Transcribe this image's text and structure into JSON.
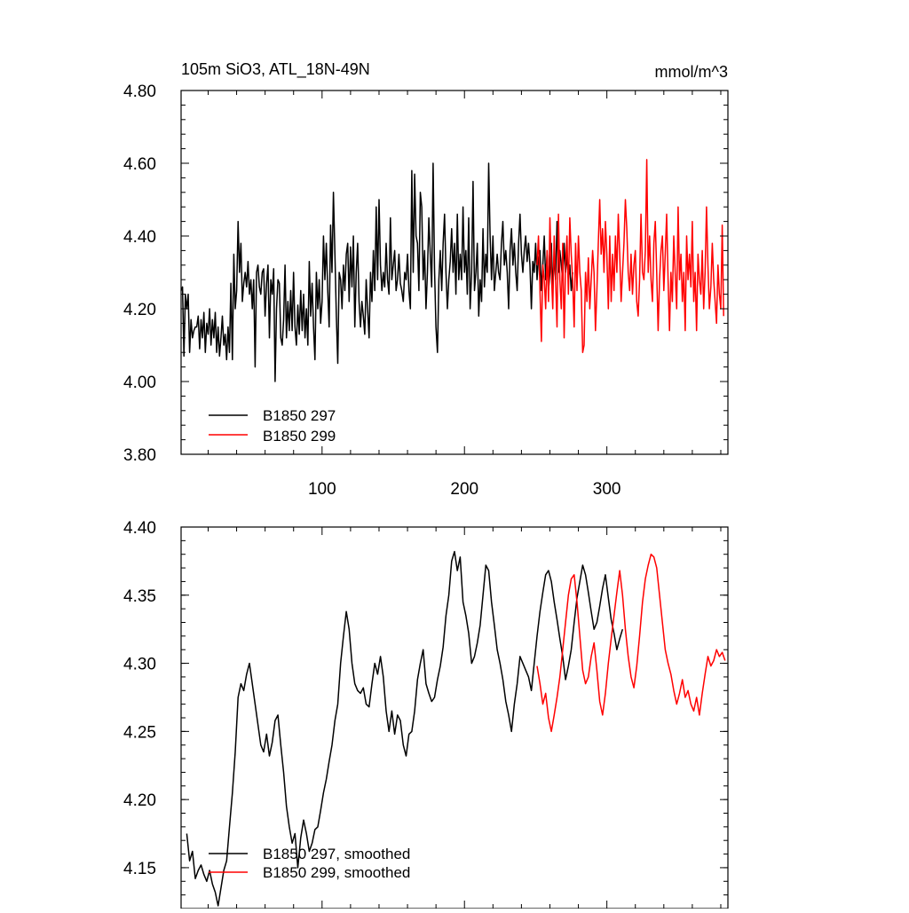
{
  "chart_data": [
    {
      "type": "line",
      "title": "105m SiO3, ATL_18N-49N",
      "units": "mmol/m^3",
      "xlim": [
        1,
        385
      ],
      "ylim": [
        3.8,
        4.8
      ],
      "x_ticks": [
        100,
        200,
        300
      ],
      "y_ticks": [
        3.8,
        4.0,
        4.2,
        4.4,
        4.6,
        4.8
      ],
      "y_tick_labels": [
        "3.80",
        "4.00",
        "4.20",
        "4.40",
        "4.60",
        "4.80"
      ],
      "legend_position": "bottom-left",
      "series": [
        {
          "name": "B1850 297",
          "color": "#000000",
          "x_start": 1,
          "x_step": 1,
          "values": [
            4.25,
            4.26,
            4.07,
            4.24,
            4.2,
            4.24,
            4.08,
            4.17,
            4.12,
            4.14,
            4.15,
            4.15,
            4.18,
            4.09,
            4.17,
            4.12,
            4.19,
            4.08,
            4.16,
            4.13,
            4.2,
            4.1,
            4.17,
            4.12,
            4.19,
            4.08,
            4.15,
            4.07,
            4.12,
            4.18,
            4.1,
            4.13,
            4.06,
            4.15,
            4.08,
            4.27,
            4.06,
            4.35,
            4.2,
            4.25,
            4.44,
            4.3,
            4.38,
            4.22,
            4.27,
            4.3,
            4.26,
            4.33,
            4.24,
            4.28,
            4.2,
            4.28,
            4.04,
            4.3,
            4.32,
            4.26,
            4.24,
            4.3,
            4.31,
            4.18,
            4.27,
            4.32,
            4.12,
            4.28,
            4.24,
            4.31,
            4.0,
            4.2,
            4.28,
            4.27,
            4.12,
            4.1,
            4.17,
            4.32,
            4.12,
            4.22,
            4.14,
            4.25,
            4.14,
            4.3,
            4.15,
            4.1,
            4.21,
            4.13,
            4.25,
            4.14,
            4.24,
            4.12,
            4.2,
            4.1,
            4.33,
            4.18,
            4.27,
            4.15,
            4.06,
            4.3,
            4.2,
            4.28,
            4.16,
            4.22,
            4.4,
            4.28,
            4.38,
            4.25,
            4.15,
            4.43,
            4.3,
            4.52,
            4.35,
            4.18,
            4.05,
            4.3,
            4.28,
            4.2,
            4.32,
            4.25,
            4.35,
            4.38,
            4.22,
            4.37,
            4.26,
            4.4,
            4.15,
            4.3,
            4.38,
            4.22,
            4.15,
            4.22,
            4.18,
            4.13,
            4.28,
            4.2,
            4.12,
            4.3,
            4.22,
            4.36,
            4.25,
            4.48,
            4.28,
            4.5,
            4.32,
            4.25,
            4.3,
            4.26,
            4.38,
            4.28,
            4.24,
            4.45,
            4.28,
            4.32,
            4.36,
            4.25,
            4.28,
            4.35,
            4.27,
            4.25,
            4.22,
            4.3,
            4.28,
            4.35,
            4.25,
            4.2,
            4.58,
            4.3,
            4.57,
            4.4,
            4.38,
            4.25,
            4.52,
            4.48,
            4.28,
            4.36,
            4.2,
            4.3,
            4.45,
            4.35,
            4.26,
            4.6,
            4.31,
            4.15,
            4.08,
            4.28,
            4.36,
            4.25,
            4.38,
            4.46,
            4.3,
            4.2,
            4.28,
            4.33,
            4.42,
            4.3,
            4.38,
            4.24,
            4.46,
            4.28,
            4.35,
            4.28,
            4.48,
            4.3,
            4.36,
            4.24,
            4.45,
            4.2,
            4.3,
            4.55,
            4.25,
            4.3,
            4.38,
            4.18,
            4.28,
            4.22,
            4.42,
            4.26,
            4.35,
            4.3,
            4.6,
            4.4,
            4.28,
            4.4,
            4.25,
            4.3,
            4.35,
            4.3,
            4.28,
            4.38,
            4.44,
            4.32,
            4.36,
            4.3,
            4.2,
            4.36,
            4.42,
            4.32,
            4.38,
            4.3,
            4.25,
            4.38,
            4.46,
            4.35,
            4.3,
            4.36,
            4.4,
            4.33,
            4.38,
            4.32,
            4.2,
            4.33,
            4.3,
            4.38,
            4.28,
            4.34,
            4.36,
            4.25,
            4.32,
            4.4,
            4.28,
            4.35,
            4.25,
            4.3,
            4.38,
            4.25,
            4.35,
            4.28,
            4.44,
            4.3,
            4.36,
            4.32,
            4.28,
            4.38,
            4.3,
            4.35,
            4.28,
            4.32,
            4.25,
            4.3
          ]
        },
        {
          "name": "B1850 299",
          "color": "#ff0000",
          "x_start": 251,
          "x_step": 1,
          "values": [
            4.32,
            4.4,
            4.25,
            4.11,
            4.32,
            4.28,
            4.2,
            4.36,
            4.22,
            4.45,
            4.3,
            4.2,
            4.4,
            4.28,
            4.15,
            4.46,
            4.28,
            4.2,
            4.38,
            4.12,
            4.32,
            4.4,
            4.24,
            4.45,
            4.35,
            4.28,
            4.15,
            4.38,
            4.25,
            4.4,
            4.3,
            4.25,
            4.08,
            4.1,
            4.3,
            4.22,
            4.34,
            4.2,
            4.28,
            4.36,
            4.3,
            4.14,
            4.25,
            4.38,
            4.5,
            4.35,
            4.42,
            4.3,
            4.44,
            4.35,
            4.2,
            4.4,
            4.22,
            4.35,
            4.25,
            4.4,
            4.3,
            4.46,
            4.35,
            4.22,
            4.3,
            4.38,
            4.5,
            4.42,
            4.3,
            4.25,
            4.35,
            4.24,
            4.32,
            4.36,
            4.22,
            4.18,
            4.28,
            4.46,
            4.3,
            4.28,
            4.36,
            4.61,
            4.3,
            4.4,
            4.28,
            4.22,
            4.38,
            4.44,
            4.3,
            4.14,
            4.28,
            4.36,
            4.4,
            4.25,
            4.35,
            4.46,
            4.28,
            4.14,
            4.3,
            4.22,
            4.4,
            4.3,
            4.2,
            4.48,
            4.28,
            4.35,
            4.22,
            4.3,
            4.14,
            4.4,
            4.28,
            4.35,
            4.26,
            4.44,
            4.22,
            4.3,
            4.14,
            4.35,
            4.28,
            4.24,
            4.36,
            4.2,
            4.3,
            4.48,
            4.32,
            4.2,
            4.26,
            4.38,
            4.28,
            4.22,
            4.16,
            4.32,
            4.24,
            4.2,
            4.43,
            4.18
          ]
        }
      ]
    },
    {
      "type": "line",
      "xlim": [
        1,
        385
      ],
      "ylim": [
        4.12,
        4.4
      ],
      "x_ticks": [
        100,
        200,
        300
      ],
      "y_ticks": [
        4.15,
        4.2,
        4.25,
        4.3,
        4.35,
        4.4
      ],
      "y_tick_labels": [
        "4.15",
        "4.20",
        "4.25",
        "4.30",
        "4.35",
        "4.40"
      ],
      "legend_position": "bottom-left",
      "series": [
        {
          "name": "B1850 297, smoothed",
          "color": "#000000",
          "x": [
            5,
            7,
            9,
            11,
            13,
            15,
            17,
            19,
            21,
            23,
            25,
            27,
            29,
            31,
            33,
            35,
            37,
            39,
            41,
            43,
            45,
            47,
            49,
            51,
            53,
            55,
            57,
            59,
            61,
            63,
            65,
            67,
            69,
            71,
            73,
            75,
            77,
            79,
            81,
            83,
            85,
            87,
            89,
            91,
            93,
            95,
            97,
            99,
            101,
            103,
            105,
            107,
            109,
            111,
            113,
            115,
            117,
            119,
            121,
            123,
            125,
            127,
            129,
            131,
            133,
            135,
            137,
            139,
            141,
            143,
            145,
            147,
            149,
            151,
            153,
            155,
            157,
            159,
            161,
            163,
            165,
            167,
            169,
            171,
            173,
            175,
            177,
            179,
            181,
            183,
            185,
            187,
            189,
            191,
            193,
            195,
            197,
            199,
            201,
            203,
            205,
            207,
            209,
            211,
            213,
            215,
            217,
            219,
            221,
            223,
            225,
            227,
            229,
            231,
            233,
            235,
            237,
            239,
            241,
            243,
            245,
            247,
            249,
            251,
            253,
            255,
            257,
            259,
            261,
            263,
            265,
            267,
            269,
            271,
            273,
            275,
            277,
            279,
            281,
            283,
            285,
            287,
            289,
            291,
            293,
            295,
            297,
            299,
            301,
            303,
            305,
            307,
            309,
            311
          ],
          "values": [
            4.175,
            4.155,
            4.162,
            4.142,
            4.148,
            4.152,
            4.145,
            4.14,
            4.148,
            4.138,
            4.132,
            4.122,
            4.135,
            4.148,
            4.155,
            4.18,
            4.205,
            4.235,
            4.275,
            4.285,
            4.28,
            4.292,
            4.3,
            4.285,
            4.27,
            4.255,
            4.24,
            4.235,
            4.248,
            4.232,
            4.242,
            4.258,
            4.262,
            4.24,
            4.22,
            4.195,
            4.18,
            4.168,
            4.175,
            4.15,
            4.172,
            4.185,
            4.175,
            4.162,
            4.168,
            4.178,
            4.18,
            4.192,
            4.205,
            4.215,
            4.228,
            4.24,
            4.258,
            4.27,
            4.3,
            4.32,
            4.338,
            4.325,
            4.3,
            4.285,
            4.28,
            4.278,
            4.282,
            4.27,
            4.268,
            4.285,
            4.3,
            4.292,
            4.305,
            4.29,
            4.265,
            4.25,
            4.265,
            4.248,
            4.262,
            4.258,
            4.24,
            4.232,
            4.248,
            4.25,
            4.265,
            4.288,
            4.3,
            4.31,
            4.285,
            4.278,
            4.272,
            4.275,
            4.288,
            4.298,
            4.312,
            4.335,
            4.35,
            4.375,
            4.382,
            4.368,
            4.378,
            4.345,
            4.335,
            4.322,
            4.3,
            4.305,
            4.315,
            4.328,
            4.35,
            4.372,
            4.368,
            4.345,
            4.328,
            4.31,
            4.3,
            4.288,
            4.272,
            4.262,
            4.25,
            4.27,
            4.285,
            4.305,
            4.3,
            4.295,
            4.29,
            4.28,
            4.3,
            4.32,
            4.338,
            4.352,
            4.365,
            4.368,
            4.36,
            4.345,
            4.332,
            4.318,
            4.305,
            4.288,
            4.298,
            4.31,
            4.33,
            4.348,
            4.36,
            4.372,
            4.365,
            4.352,
            4.338,
            4.325,
            4.33,
            4.342,
            4.355,
            4.365,
            4.348,
            4.332,
            4.322,
            4.31,
            4.318,
            4.325
          ]
        },
        {
          "name": "B1850 299, smoothed",
          "color": "#ff0000",
          "x": [
            251,
            253,
            255,
            257,
            259,
            261,
            263,
            265,
            267,
            269,
            271,
            273,
            275,
            277,
            279,
            281,
            283,
            285,
            287,
            289,
            291,
            293,
            295,
            297,
            299,
            301,
            303,
            305,
            307,
            309,
            311,
            313,
            315,
            317,
            319,
            321,
            323,
            325,
            327,
            329,
            331,
            333,
            335,
            337,
            339,
            341,
            343,
            345,
            347,
            349,
            351,
            353,
            355,
            357,
            359,
            361,
            363,
            365,
            367,
            369,
            371,
            373,
            375,
            377,
            379,
            381,
            383
          ],
          "values": [
            4.298,
            4.285,
            4.27,
            4.278,
            4.26,
            4.25,
            4.262,
            4.275,
            4.29,
            4.31,
            4.33,
            4.35,
            4.362,
            4.365,
            4.345,
            4.32,
            4.295,
            4.285,
            4.29,
            4.305,
            4.315,
            4.295,
            4.272,
            4.262,
            4.278,
            4.3,
            4.318,
            4.335,
            4.352,
            4.368,
            4.35,
            4.325,
            4.305,
            4.29,
            4.282,
            4.298,
            4.32,
            4.345,
            4.362,
            4.372,
            4.38,
            4.378,
            4.37,
            4.35,
            4.33,
            4.31,
            4.3,
            4.292,
            4.28,
            4.27,
            4.278,
            4.288,
            4.275,
            4.28,
            4.27,
            4.265,
            4.275,
            4.262,
            4.278,
            4.292,
            4.305,
            4.298,
            4.302,
            4.31,
            4.305,
            4.308,
            4.302
          ]
        }
      ]
    }
  ]
}
